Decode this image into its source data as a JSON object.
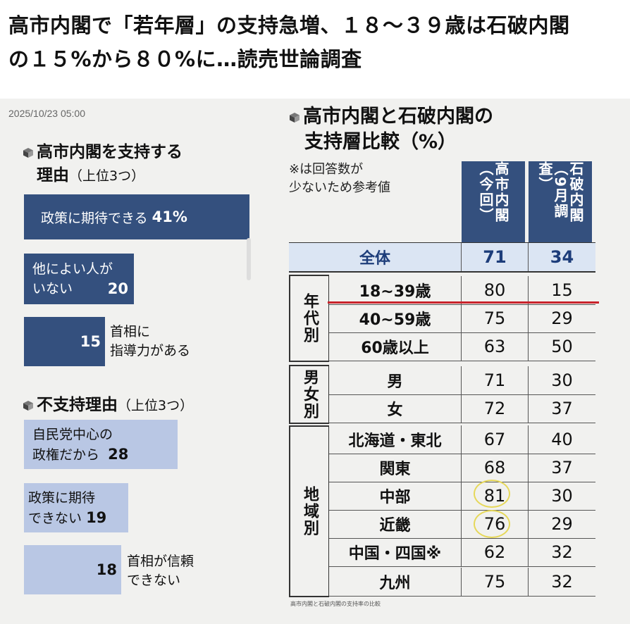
{
  "headline": {
    "line1": "高市内閣で「若年層」の支持急増、１８〜３９歳は石破内閣",
    "line2": "の１５%から８０%に…読売世論調査"
  },
  "timestamp": "2025/10/23 05:00",
  "support_reasons": {
    "title": "高市内閣を支持する",
    "title2": "理由",
    "subtitle": "（上位3つ）",
    "items": [
      {
        "text": "政策に期待できる",
        "value": "41%"
      },
      {
        "line1": "他によい人が",
        "line2": "いない",
        "value": "20"
      },
      {
        "value": "15",
        "line1": "首相に",
        "line2": "指導力がある"
      }
    ]
  },
  "nonsupport_reasons": {
    "title": "不支持理由",
    "subtitle": "（上位3つ）",
    "items": [
      {
        "line1": "自民党中心の",
        "line2": "政権だから",
        "value": "28"
      },
      {
        "line1": "政策に期待",
        "line2": "できない",
        "value": "19"
      },
      {
        "value": "18",
        "line1": "首相が信頼",
        "line2": "できない"
      }
    ]
  },
  "comparison": {
    "title_line1": "高市内閣と石破内閣の",
    "title_line2": "支持層比較（%）",
    "note_line1": "※は回答数が",
    "note_line2": "少ないため参考値",
    "col1": "高市内閣（今回）",
    "col2": "石破内閣（9月調査）",
    "groups": {
      "age": "年代別",
      "gender": "男女別",
      "region": "地域別"
    },
    "rows": [
      {
        "label": "全体",
        "takaichi": "71",
        "ishiba": "34"
      },
      {
        "label": "18~39歳",
        "takaichi": "80",
        "ishiba": "15"
      },
      {
        "label": "40~59歳",
        "takaichi": "75",
        "ishiba": "29"
      },
      {
        "label": "60歳以上",
        "takaichi": "63",
        "ishiba": "50"
      },
      {
        "label": "男",
        "takaichi": "71",
        "ishiba": "30"
      },
      {
        "label": "女",
        "takaichi": "72",
        "ishiba": "37"
      },
      {
        "label": "北海道・東北",
        "takaichi": "67",
        "ishiba": "40"
      },
      {
        "label": "関東",
        "takaichi": "68",
        "ishiba": "37"
      },
      {
        "label": "中部",
        "takaichi": "81",
        "ishiba": "30"
      },
      {
        "label": "近畿",
        "takaichi": "76",
        "ishiba": "29"
      },
      {
        "label": "中国・四国※",
        "takaichi": "62",
        "ishiba": "32"
      },
      {
        "label": "九州",
        "takaichi": "75",
        "ishiba": "32"
      }
    ],
    "footnote": "高市内閣と石破内閣の支持率の比較"
  },
  "colors": {
    "bar_dark": "#34507e",
    "bar_light": "#b9c7e4",
    "highlight_line": "#c9242c",
    "circle": "#e6d85a"
  }
}
